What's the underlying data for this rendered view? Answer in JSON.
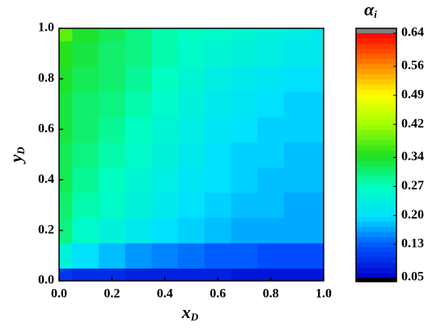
{
  "chart_data": {
    "type": "heatmap",
    "xlabel": {
      "main": "x",
      "sub": "D"
    },
    "ylabel": {
      "main": "y",
      "sub": "D"
    },
    "colorbar_label": {
      "main": "α",
      "sub": "i"
    },
    "x": [
      0,
      0.1,
      0.2,
      0.3,
      0.4,
      0.5,
      0.6,
      0.7,
      0.8,
      0.9,
      1.0
    ],
    "y": [
      0,
      0.1,
      0.2,
      0.3,
      0.4,
      0.5,
      0.6,
      0.7,
      0.8,
      0.9,
      1.0
    ],
    "z": [
      [
        0.1,
        0.09,
        0.09,
        0.08,
        0.08,
        0.08,
        0.08,
        0.07,
        0.07,
        0.07,
        0.07
      ],
      [
        0.24,
        0.2,
        0.18,
        0.16,
        0.15,
        0.14,
        0.13,
        0.13,
        0.12,
        0.12,
        0.12
      ],
      [
        0.3,
        0.26,
        0.24,
        0.22,
        0.2,
        0.19,
        0.18,
        0.17,
        0.17,
        0.17,
        0.17
      ],
      [
        0.31,
        0.28,
        0.26,
        0.24,
        0.22,
        0.2,
        0.19,
        0.18,
        0.18,
        0.17,
        0.17
      ],
      [
        0.32,
        0.29,
        0.27,
        0.25,
        0.23,
        0.21,
        0.2,
        0.19,
        0.18,
        0.18,
        0.18
      ],
      [
        0.32,
        0.3,
        0.28,
        0.26,
        0.24,
        0.22,
        0.2,
        0.19,
        0.19,
        0.18,
        0.18
      ],
      [
        0.33,
        0.31,
        0.29,
        0.27,
        0.25,
        0.23,
        0.21,
        0.2,
        0.19,
        0.19,
        0.19
      ],
      [
        0.33,
        0.31,
        0.3,
        0.28,
        0.26,
        0.24,
        0.22,
        0.21,
        0.2,
        0.19,
        0.19
      ],
      [
        0.34,
        0.32,
        0.31,
        0.29,
        0.27,
        0.25,
        0.23,
        0.22,
        0.21,
        0.2,
        0.2
      ],
      [
        0.35,
        0.33,
        0.31,
        0.3,
        0.28,
        0.26,
        0.25,
        0.24,
        0.23,
        0.22,
        0.22
      ],
      [
        0.38,
        0.34,
        0.32,
        0.3,
        0.28,
        0.27,
        0.26,
        0.25,
        0.24,
        0.23,
        0.22
      ]
    ],
    "xlim": [
      0,
      1
    ],
    "ylim": [
      0,
      1
    ],
    "xticks": [
      {
        "value": 0,
        "label": "0.0"
      },
      {
        "value": 0.2,
        "label": "0.2"
      },
      {
        "value": 0.4,
        "label": "0.4"
      },
      {
        "value": 0.6,
        "label": "0.6"
      },
      {
        "value": 0.8,
        "label": "0.8"
      },
      {
        "value": 1,
        "label": "1.0"
      }
    ],
    "yticks": [
      {
        "value": 0,
        "label": "0.0"
      },
      {
        "value": 0.2,
        "label": "0.2"
      },
      {
        "value": 0.4,
        "label": "0.4"
      },
      {
        "value": 0.6,
        "label": "0.6"
      },
      {
        "value": 0.8,
        "label": "0.8"
      },
      {
        "value": 1,
        "label": "1.0"
      }
    ],
    "zlim": [
      0.05,
      0.64
    ],
    "zticks": [
      0.05,
      0.13,
      {
        "value": 0.2,
        "label": "0.20"
      },
      0.27,
      0.34,
      0.42,
      0.49,
      0.56,
      0.64
    ],
    "colormap": [
      "#0000c8",
      "#0050ff",
      "#00e0ff",
      "#00ffc0",
      "#20e020",
      "#a0ff00",
      "#ffff00",
      "#ff8000",
      "#ff0000"
    ],
    "under_color": "#000000",
    "over_color": "#808080"
  }
}
